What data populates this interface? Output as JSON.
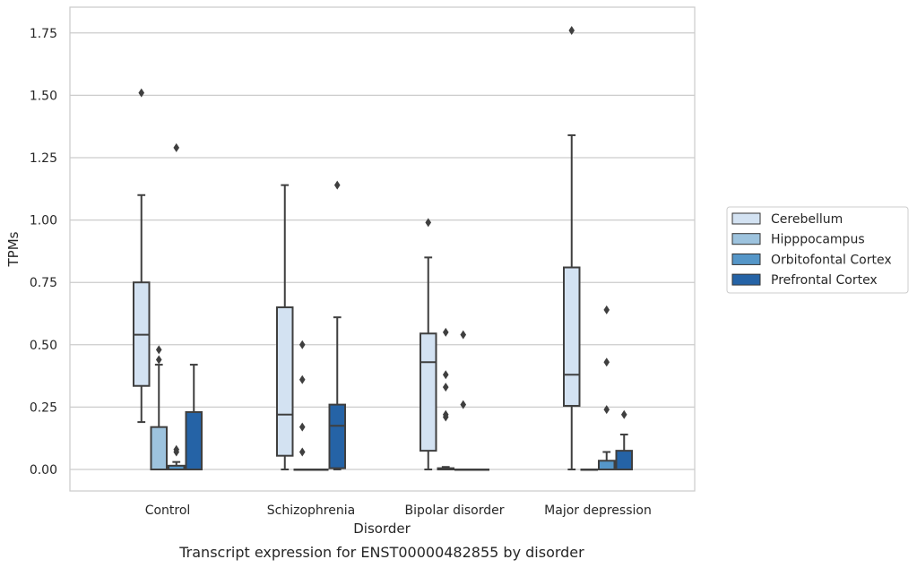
{
  "chart_data": {
    "type": "box",
    "caption": "Transcript expression for ENST00000482855 by disorder",
    "xlabel": "Disorder",
    "ylabel": "TPMs",
    "ylim": [
      -0.085,
      1.85
    ],
    "yticks": [
      0.0,
      0.25,
      0.5,
      0.75,
      1.0,
      1.25,
      1.5,
      1.75
    ],
    "ytick_labels": [
      "0.00",
      "0.25",
      "0.50",
      "0.75",
      "1.00",
      "1.25",
      "1.50",
      "1.75"
    ],
    "grid": "horizontal",
    "legend_position": "right",
    "categories": [
      "Control",
      "Schizophrenia",
      "Bipolar disorder",
      "Major depression"
    ],
    "series": [
      {
        "name": "Cerebellum",
        "color": "#d3e2f2",
        "boxes": [
          {
            "whislo": 0.19,
            "q1": 0.335,
            "med": 0.54,
            "q3": 0.75,
            "whishi": 1.1,
            "fliers": [
              1.51
            ]
          },
          {
            "whislo": 0.0,
            "q1": 0.055,
            "med": 0.22,
            "q3": 0.65,
            "whishi": 1.14,
            "fliers": []
          },
          {
            "whislo": 0.0,
            "q1": 0.075,
            "med": 0.43,
            "q3": 0.545,
            "whishi": 0.85,
            "fliers": [
              0.99
            ]
          },
          {
            "whislo": 0.0,
            "q1": 0.255,
            "med": 0.38,
            "q3": 0.81,
            "whishi": 1.34,
            "fliers": [
              1.76
            ]
          }
        ]
      },
      {
        "name": "Hipppocampus",
        "color": "#9dc3de",
        "boxes": [
          {
            "whislo": 0.0,
            "q1": 0.0,
            "med": 0.0,
            "q3": 0.17,
            "whishi": 0.42,
            "fliers": [
              0.44,
              0.48
            ]
          },
          {
            "whislo": 0.0,
            "q1": 0.0,
            "med": 0.0,
            "q3": 0.0,
            "whishi": 0.0,
            "fliers": [
              0.07,
              0.17,
              0.36,
              0.5
            ]
          },
          {
            "whislo": 0.0,
            "q1": 0.0,
            "med": 0.0,
            "q3": 0.005,
            "whishi": 0.01,
            "fliers": [
              0.21,
              0.22,
              0.33,
              0.38,
              0.55
            ]
          },
          {
            "whislo": 0.0,
            "q1": 0.0,
            "med": 0.0,
            "q3": 0.0,
            "whishi": 0.0,
            "fliers": []
          }
        ]
      },
      {
        "name": "Orbitofontal Cortex",
        "color": "#5596c8",
        "boxes": [
          {
            "whislo": 0.0,
            "q1": 0.0,
            "med": 0.0,
            "q3": 0.015,
            "whishi": 0.03,
            "fliers": [
              0.07,
              0.08,
              1.29
            ]
          },
          {
            "whislo": 0.0,
            "q1": 0.0,
            "med": 0.0,
            "q3": 0.0,
            "whishi": 0.0,
            "fliers": []
          },
          {
            "whislo": 0.0,
            "q1": 0.0,
            "med": 0.0,
            "q3": 0.0,
            "whishi": 0.0,
            "fliers": [
              0.26,
              0.54
            ]
          },
          {
            "whislo": 0.0,
            "q1": 0.0,
            "med": 0.0,
            "q3": 0.035,
            "whishi": 0.07,
            "fliers": [
              0.24,
              0.43,
              0.64
            ]
          }
        ]
      },
      {
        "name": "Prefrontal Cortex",
        "color": "#2563a6",
        "boxes": [
          {
            "whislo": 0.0,
            "q1": 0.0,
            "med": 0.0,
            "q3": 0.23,
            "whishi": 0.42,
            "fliers": []
          },
          {
            "whislo": 0.0,
            "q1": 0.005,
            "med": 0.175,
            "q3": 0.26,
            "whishi": 0.61,
            "fliers": [
              1.14
            ]
          },
          {
            "whislo": 0.0,
            "q1": 0.0,
            "med": 0.0,
            "q3": 0.0,
            "whishi": 0.0,
            "fliers": []
          },
          {
            "whislo": 0.0,
            "q1": 0.0,
            "med": 0.0,
            "q3": 0.075,
            "whishi": 0.14,
            "fliers": [
              0.22
            ]
          }
        ]
      }
    ]
  }
}
